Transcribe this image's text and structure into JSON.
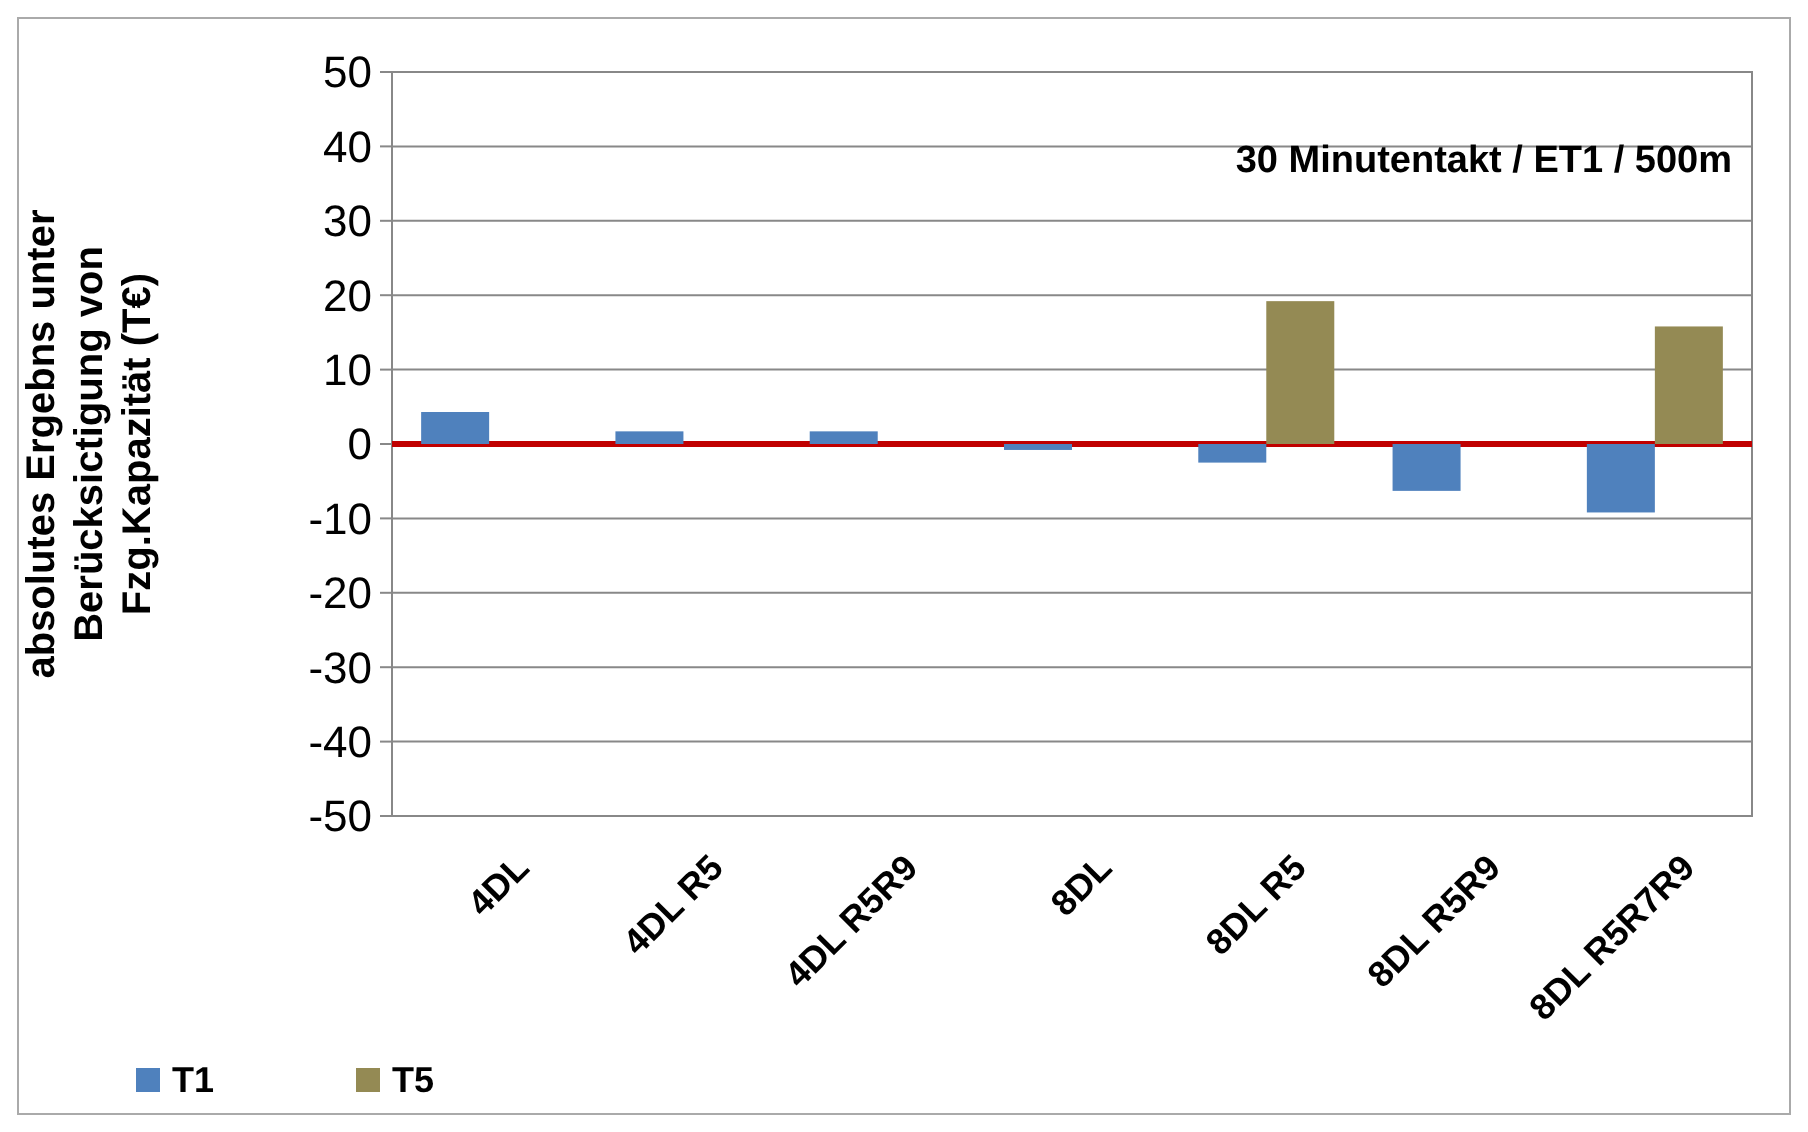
{
  "chart_data": {
    "type": "bar",
    "ylabel": "absolutes Ergebns unter Berücksictigung von Fzg.Kapazität (T€)",
    "categories": [
      "4DL",
      "4DL R5",
      "4DL R5R9",
      "8DL",
      "8DL R5",
      "8DL R5R9",
      "8DL R5R7R9"
    ],
    "series": [
      {
        "name": "T1",
        "color": "#4f81bd",
        "values": [
          4.3,
          1.7,
          1.7,
          -0.8,
          -2.5,
          -6.3,
          -9.2
        ]
      },
      {
        "name": "T5",
        "color": "#948a54",
        "values": [
          null,
          null,
          null,
          null,
          19.2,
          null,
          15.8
        ]
      }
    ],
    "ylim": [
      -50,
      50
    ],
    "yticks": [
      -50,
      -40,
      -30,
      -20,
      -10,
      0,
      10,
      20,
      30,
      40,
      50
    ],
    "grid": "y",
    "legend": "bottom left",
    "ref_lines": [
      {
        "axis": "y",
        "value": 0,
        "color": "#c00000"
      }
    ],
    "annotations": [
      "30 Minutentakt / ET1 / 500m"
    ]
  }
}
